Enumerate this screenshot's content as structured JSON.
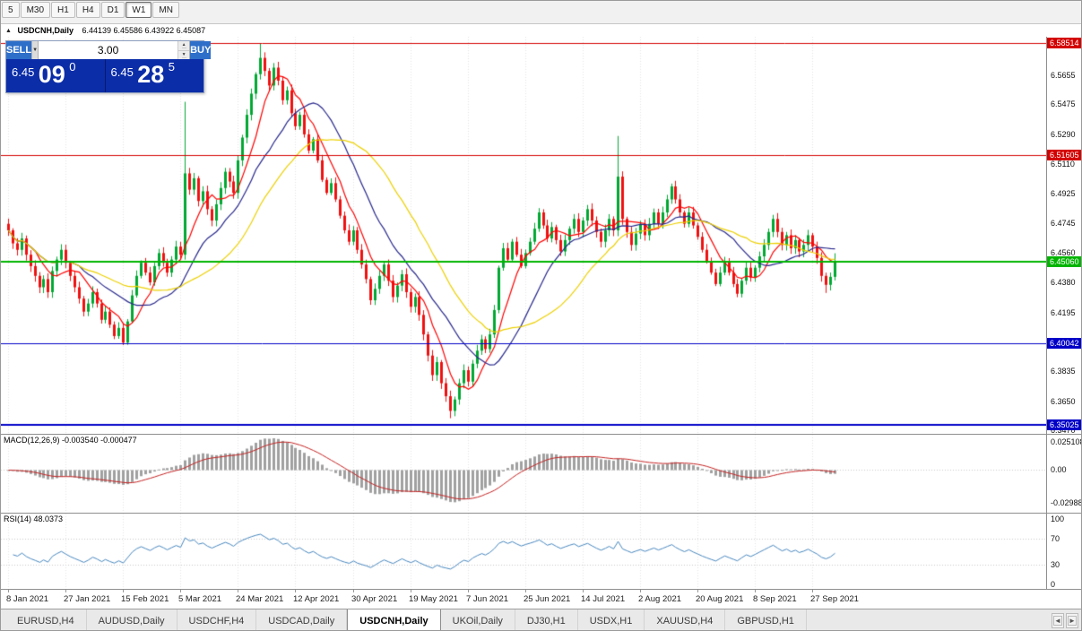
{
  "toolbar": {
    "timeframes": [
      "5",
      "M30",
      "H1",
      "H4",
      "D1",
      "W1",
      "MN"
    ],
    "active": "W1"
  },
  "chart": {
    "symbol": "USDCNH,Daily",
    "ohlc": "6.44139 6.45586 6.43922 6.45087"
  },
  "trade_panel": {
    "sell_label": "SELL",
    "buy_label": "BUY",
    "volume": "3.00",
    "sell_price": {
      "small": "6.45",
      "big": "09",
      "sup": "0"
    },
    "buy_price": {
      "small": "6.45",
      "big": "28",
      "sup": "5"
    }
  },
  "icons": {
    "collapse": "▲",
    "dropdown": "▼",
    "spin_up": "▲",
    "spin_down": "▼",
    "scroll_left": "◄",
    "scroll_right": "►"
  },
  "colors": {
    "bull": "#00a832",
    "bear": "#ef1010",
    "macd_hist": "#a0a0a0",
    "macd_signal": "#c42020",
    "rsi_line": "#4686be"
  },
  "tab_bar": {
    "tabs": [
      {
        "label": "EURUSD,H4",
        "active": false
      },
      {
        "label": "AUDUSD,Daily",
        "active": false
      },
      {
        "label": "USDCHF,H4",
        "active": false
      },
      {
        "label": "USDCAD,Daily",
        "active": false
      },
      {
        "label": "USDCNH,Daily",
        "active": true
      },
      {
        "label": "UKOil,Daily",
        "active": false
      },
      {
        "label": "DJ30,H1",
        "active": false
      },
      {
        "label": "USDX,H1",
        "active": false
      },
      {
        "label": "XAUUSD,H4",
        "active": false
      },
      {
        "label": "GBPUSD,H1",
        "active": false
      }
    ]
  },
  "chart_data": {
    "type": "candlestick",
    "title": "USDCNH,Daily",
    "ohlc_current": {
      "open": "6.44139",
      "high": "6.45586",
      "low": "6.43922",
      "close": "6.45087"
    },
    "ylim": [
      6.3449,
      6.589
    ],
    "first_x": 8,
    "bar_spacing": 4.93,
    "closes": [
      6.47,
      6.462,
      6.458,
      6.465,
      6.455,
      6.448,
      6.442,
      6.435,
      6.44,
      6.432,
      6.445,
      6.452,
      6.458,
      6.45,
      6.442,
      6.435,
      6.428,
      6.42,
      6.425,
      6.432,
      6.425,
      6.415,
      6.42,
      6.412,
      6.405,
      6.41,
      6.401,
      6.414,
      6.43,
      6.442,
      6.45,
      6.444,
      6.438,
      6.448,
      6.456,
      6.45,
      6.444,
      6.452,
      6.46,
      6.455,
      6.505,
      6.495,
      6.502,
      6.488,
      6.494,
      6.483,
      6.476,
      6.486,
      6.496,
      6.506,
      6.5,
      6.493,
      6.513,
      6.527,
      6.541,
      6.554,
      6.566,
      6.576,
      6.568,
      6.559,
      6.57,
      6.562,
      6.55,
      6.556,
      6.542,
      6.534,
      6.541,
      6.529,
      6.519,
      6.526,
      6.513,
      6.501,
      6.493,
      6.499,
      6.489,
      6.479,
      6.47,
      6.463,
      6.47,
      6.458,
      6.449,
      6.44,
      6.427,
      6.434,
      6.442,
      6.449,
      6.439,
      6.429,
      6.436,
      6.443,
      6.432,
      6.423,
      6.429,
      6.418,
      6.406,
      6.393,
      6.381,
      6.389,
      6.376,
      6.368,
      6.359,
      6.366,
      6.376,
      6.384,
      6.377,
      6.388,
      6.396,
      6.403,
      6.397,
      6.406,
      6.421,
      6.447,
      6.459,
      6.452,
      6.463,
      6.455,
      6.448,
      6.456,
      6.463,
      6.471,
      6.481,
      6.473,
      6.465,
      6.472,
      6.464,
      6.457,
      6.464,
      6.471,
      6.477,
      6.469,
      6.476,
      6.483,
      6.476,
      6.469,
      6.463,
      6.47,
      6.477,
      6.47,
      6.503,
      6.477,
      6.469,
      6.461,
      6.468,
      6.474,
      6.467,
      6.474,
      6.481,
      6.474,
      6.481,
      6.489,
      6.497,
      6.489,
      6.481,
      6.474,
      6.481,
      6.473,
      6.466,
      6.458,
      6.451,
      6.444,
      6.437,
      6.444,
      6.451,
      6.444,
      6.437,
      6.431,
      6.439,
      6.447,
      6.441,
      6.447,
      6.454,
      6.461,
      6.469,
      6.477,
      6.469,
      6.461,
      6.467,
      6.459,
      6.464,
      6.457,
      6.461,
      6.467,
      6.46,
      6.453,
      6.442,
      6.4365,
      6.4414,
      6.4509
    ],
    "wick_overrides": {
      "40": {
        "h": 6.549
      },
      "57": {
        "h": 6.585
      },
      "100": {
        "l": 6.3545
      },
      "138": {
        "h": 6.528
      },
      "185": {
        "l": 6.4315
      },
      "187": {
        "h": 6.4559,
        "l": 6.4392
      }
    },
    "ma_lines": [
      {
        "name": "ma-fast",
        "period": 7,
        "color": "#ff0000"
      },
      {
        "name": "ma-mid",
        "period": 17,
        "color": "#26268c"
      },
      {
        "name": "ma-slow",
        "period": 30,
        "color": "#ecd000"
      }
    ],
    "levels": [
      {
        "price": 6.58514,
        "label": "6.58514",
        "color": "#d40000",
        "width": 1
      },
      {
        "price": 6.51605,
        "label": "6.51605",
        "color": "#d40000",
        "width": 1
      },
      {
        "price": 6.4506,
        "label": "6.45060",
        "color": "#00b400",
        "width": 2
      },
      {
        "price": 6.40042,
        "label": "6.40042",
        "color": "#0000c8",
        "width": 1
      },
      {
        "price": 6.35025,
        "label": "6.35025",
        "color": "#0000c8",
        "width": 2
      }
    ],
    "price_ticks": [
      "6.5655",
      "6.5475",
      "6.5290",
      "6.5110",
      "6.4925",
      "6.4745",
      "6.4560",
      "6.4380",
      "6.4195",
      "6.4015",
      "6.3835",
      "6.3650",
      "6.3470"
    ],
    "date_ticks": [
      {
        "i": 0,
        "label": "8 Jan 2021"
      },
      {
        "i": 13,
        "label": "27 Jan 2021"
      },
      {
        "i": 26,
        "label": "15 Feb 2021"
      },
      {
        "i": 39,
        "label": "5 Mar 2021"
      },
      {
        "i": 52,
        "label": "24 Mar 2021"
      },
      {
        "i": 65,
        "label": "12 Apr 2021"
      },
      {
        "i": 78,
        "label": "30 Apr 2021"
      },
      {
        "i": 91,
        "label": "19 May 2021"
      },
      {
        "i": 104,
        "label": "7 Jun 2021"
      },
      {
        "i": 117,
        "label": "25 Jun 2021"
      },
      {
        "i": 130,
        "label": "14 Jul 2021"
      },
      {
        "i": 143,
        "label": "2 Aug 2021"
      },
      {
        "i": 156,
        "label": "20 Aug 2021"
      },
      {
        "i": 169,
        "label": "8 Sep 2021"
      },
      {
        "i": 182,
        "label": "27 Sep 2021"
      }
    ],
    "indicators": {
      "macd": {
        "label": "MACD(12,26,9)",
        "values_text": "-0.003540 -0.000477",
        "params": [
          12,
          26,
          9
        ],
        "axis": [
          "0.025108",
          "0.00",
          "-0.029884"
        ]
      },
      "rsi": {
        "label": "RSI(14)",
        "value_text": "48.0373",
        "period": 14,
        "axis": [
          "100",
          "70",
          "30",
          "0"
        ],
        "bands": [
          70,
          30
        ]
      }
    }
  }
}
